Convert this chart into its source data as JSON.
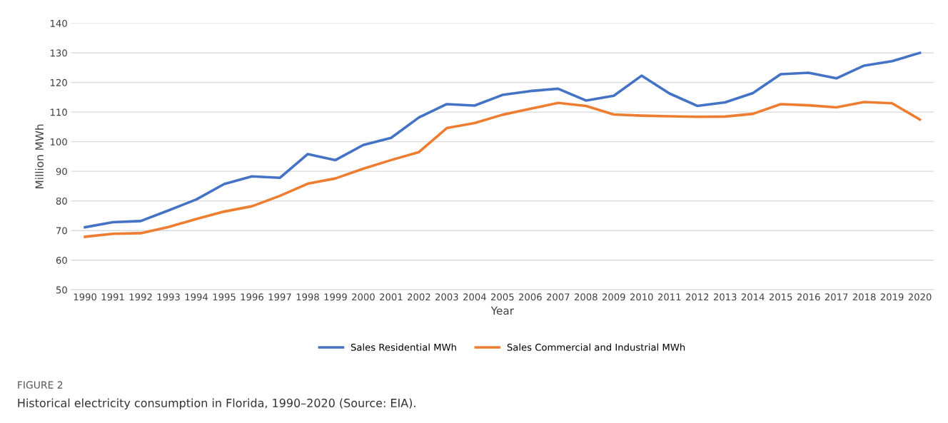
{
  "chart_data": {
    "type": "line",
    "xlabel": "Year",
    "ylabel": "Million MWh",
    "categories": [
      "1990",
      "1991",
      "1992",
      "1993",
      "1994",
      "1995",
      "1996",
      "1997",
      "1998",
      "1999",
      "2000",
      "2001",
      "2002",
      "2003",
      "2004",
      "2005",
      "2006",
      "2007",
      "2008",
      "2009",
      "2010",
      "2011",
      "2012",
      "2013",
      "2014",
      "2015",
      "2016",
      "2017",
      "2018",
      "2019",
      "2020"
    ],
    "series": [
      {
        "name": "Sales Residential MWh",
        "color": "#4472c4",
        "values": [
          71.1,
          72.8,
          73.2,
          76.8,
          80.5,
          85.7,
          88.3,
          87.8,
          95.8,
          93.8,
          98.9,
          101.3,
          108.2,
          112.7,
          112.2,
          115.8,
          117.1,
          117.9,
          113.9,
          115.5,
          122.3,
          116.3,
          112.1,
          113.3,
          116.4,
          122.8,
          123.3,
          121.4,
          125.7,
          127.2,
          130.0
        ]
      },
      {
        "name": "Sales Commercial and Industrial MWh",
        "color": "#ed7d31",
        "values": [
          67.9,
          68.9,
          69.1,
          71.2,
          73.9,
          76.4,
          78.2,
          81.7,
          85.8,
          87.6,
          90.9,
          93.8,
          96.5,
          104.6,
          106.3,
          109.1,
          111.1,
          113.1,
          112.1,
          109.2,
          108.8,
          108.6,
          108.4,
          108.5,
          109.4,
          112.7,
          112.3,
          111.6,
          113.4,
          113.0,
          107.5
        ]
      }
    ],
    "ylim": [
      50,
      140
    ],
    "yticks": [
      50,
      60,
      70,
      80,
      90,
      100,
      110,
      120,
      130,
      140
    ],
    "grid": "y",
    "legend": "bottom",
    "marker": "none",
    "line_style": "solid",
    "annotations": [
      "FIGURE 2",
      "Historical electricity consumption in Florida, 1990–2020 (Source: EIA)."
    ]
  }
}
